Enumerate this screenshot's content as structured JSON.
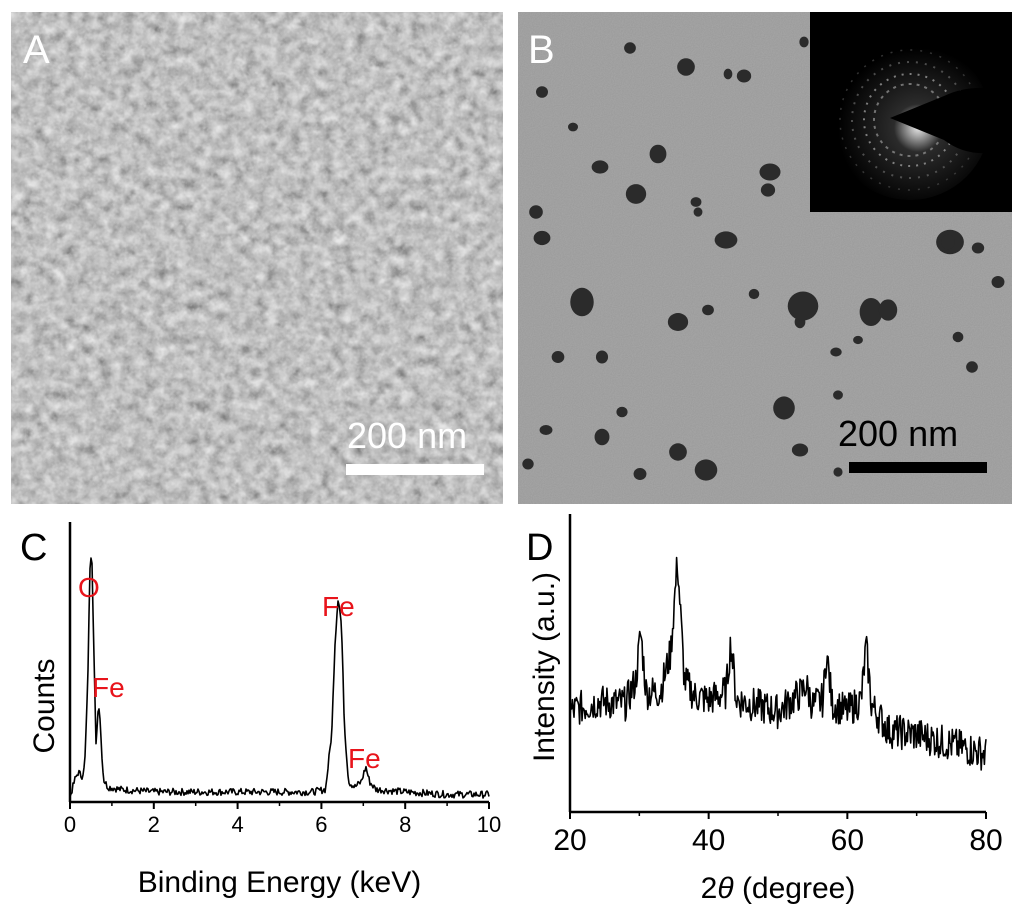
{
  "panels": {
    "a": {
      "letter": "A",
      "scale_label": "200 nm",
      "scale_color": "#ffffff"
    },
    "b": {
      "letter": "B",
      "scale_label": "200 nm",
      "scale_color": "#000000"
    },
    "c": {
      "letter": "C"
    },
    "d": {
      "letter": "D"
    }
  },
  "colors": {
    "peak_label": "#e8141b",
    "line": "#000000",
    "sem_bg": "#7a7a7a",
    "tem_bg": "#a8a8a8"
  },
  "chart_data": [
    {
      "id": "C",
      "type": "line",
      "title": "",
      "xlabel": "Binding Energy (keV)",
      "ylabel": "Counts",
      "xlim": [
        0,
        10
      ],
      "xticks": [
        0,
        2,
        4,
        6,
        8,
        10
      ],
      "grid": false,
      "y_axis_ticks": false,
      "annotations": [
        {
          "text": "O",
          "x": 0.52
        },
        {
          "text": "Fe",
          "x": 0.72
        },
        {
          "text": "Fe",
          "x": 6.4
        },
        {
          "text": "Fe",
          "x": 7.06
        }
      ],
      "series": [
        {
          "x": [
            0.0,
            0.12,
            0.2,
            0.28,
            0.35,
            0.42,
            0.48,
            0.52,
            0.57,
            0.62,
            0.66,
            0.7,
            0.75,
            0.8,
            0.9,
            1.2,
            2.0,
            3.0,
            4.0,
            5.0,
            5.8,
            6.1,
            6.25,
            6.32,
            6.4,
            6.48,
            6.55,
            6.65,
            6.8,
            6.95,
            7.06,
            7.15,
            7.3,
            8.0,
            9.0,
            10.0
          ],
          "y": [
            2,
            9,
            12,
            10,
            14,
            45,
            96,
            100,
            60,
            22,
            35,
            39,
            22,
            9,
            6,
            5,
            4,
            4,
            4,
            4,
            4,
            5,
            28,
            62,
            82,
            70,
            30,
            8,
            6,
            8,
            14,
            8,
            5,
            4,
            3,
            3
          ]
        }
      ]
    },
    {
      "id": "D",
      "type": "line",
      "title": "",
      "xlabel": "2θ (degree)",
      "ylabel": "Intensity (a.u.)",
      "xlim": [
        20,
        80
      ],
      "xticks": [
        20,
        40,
        60,
        80
      ],
      "grid": false,
      "y_axis_ticks": false,
      "series": [
        {
          "x": [
            20,
            24,
            28,
            29.5,
            30.2,
            31,
            33,
            34.5,
            35.5,
            36.5,
            38,
            40,
            42.5,
            43.2,
            44,
            47,
            50,
            53.5,
            54,
            55,
            56.5,
            57,
            57.8,
            60,
            62,
            62.7,
            63.5,
            66,
            70,
            74,
            78,
            80
          ],
          "y": [
            52,
            57,
            56,
            68,
            93,
            62,
            62,
            82,
            130,
            68,
            60,
            58,
            62,
            88,
            58,
            55,
            52,
            62,
            66,
            55,
            58,
            83,
            56,
            52,
            58,
            86,
            55,
            42,
            40,
            36,
            32,
            30
          ]
        }
      ]
    }
  ]
}
